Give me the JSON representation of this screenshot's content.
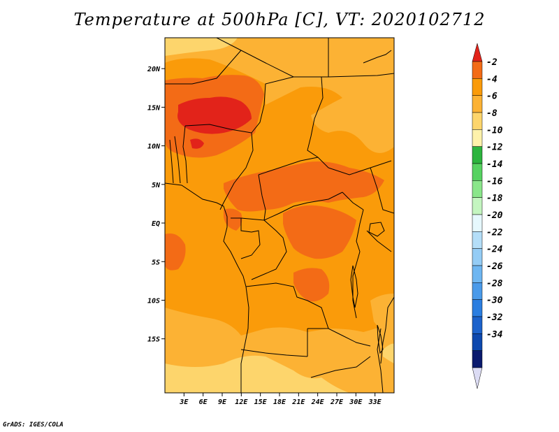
{
  "title": "Temperature at 500hPa [C], VT: 2020102712",
  "credit": "GrADS: IGES/COLA",
  "map": {
    "variable": "Temperature at 500hPa",
    "units": "C",
    "valid_time": "2020102712",
    "lon_range": [
      0,
      36
    ],
    "lat_range": [
      -22,
      24
    ],
    "lon_ticks": [
      {
        "value": 3,
        "label": "3E"
      },
      {
        "value": 6,
        "label": "6E"
      },
      {
        "value": 9,
        "label": "9E"
      },
      {
        "value": 12,
        "label": "12E"
      },
      {
        "value": 15,
        "label": "15E"
      },
      {
        "value": 18,
        "label": "18E"
      },
      {
        "value": 21,
        "label": "21E"
      },
      {
        "value": 24,
        "label": "24E"
      },
      {
        "value": 27,
        "label": "27E"
      },
      {
        "value": 30,
        "label": "30E"
      },
      {
        "value": 33,
        "label": "33E"
      }
    ],
    "lat_ticks": [
      {
        "value": 20,
        "label": "20N"
      },
      {
        "value": 15,
        "label": "15N"
      },
      {
        "value": 10,
        "label": "10N"
      },
      {
        "value": 5,
        "label": "5N"
      },
      {
        "value": 0,
        "label": "EQ"
      },
      {
        "value": -5,
        "label": "5S"
      },
      {
        "value": -10,
        "label": "10S"
      },
      {
        "value": -15,
        "label": "15S"
      }
    ]
  },
  "colorbar": {
    "bins": [
      {
        "color": "#e2231a"
      },
      {
        "color": "#f36b16"
      },
      {
        "color": "#fa9b0a"
      },
      {
        "color": "#fcb234"
      },
      {
        "color": "#fdd56c"
      },
      {
        "color": "#fef2ab"
      },
      {
        "color": "#2cb43e"
      },
      {
        "color": "#56d261"
      },
      {
        "color": "#8ae68a"
      },
      {
        "color": "#c4f5c0"
      },
      {
        "color": "#e6f8fd"
      },
      {
        "color": "#b4def8"
      },
      {
        "color": "#94ccf5"
      },
      {
        "color": "#6eb6f1"
      },
      {
        "color": "#4a9ae9"
      },
      {
        "color": "#2b7ee0"
      },
      {
        "color": "#1c62cb"
      },
      {
        "color": "#0d48ae"
      },
      {
        "color": "#0a1a6e"
      },
      {
        "color": "#dcdcf4"
      }
    ],
    "labels": [
      "-2",
      "-4",
      "-6",
      "-8",
      "-10",
      "-12",
      "-14",
      "-16",
      "-18",
      "-20",
      "-22",
      "-24",
      "-26",
      "-28",
      "-30",
      "-32",
      "-34"
    ]
  }
}
